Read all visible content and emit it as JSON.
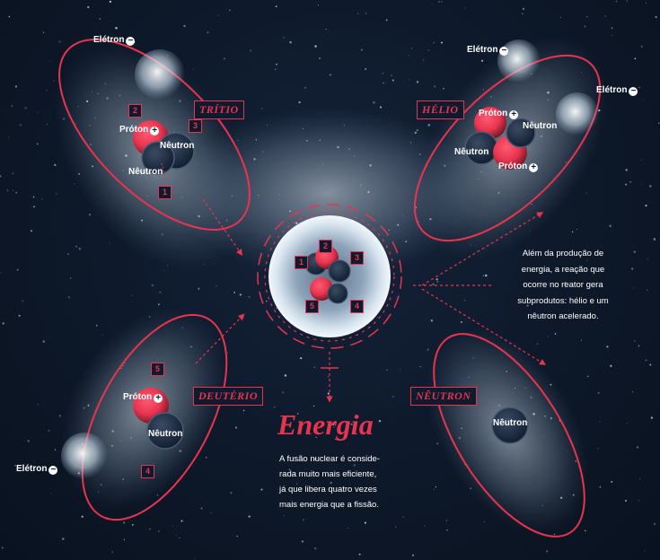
{
  "title": "Energia",
  "energia_text": [
    "A fusão nuclear é conside-",
    "rada muito mais eficiente,",
    "já que libera quatro vezes",
    "mais energia que a fissão."
  ],
  "side_text": [
    "Além da produção de",
    "energia, a reação que",
    "ocorre no reator gera",
    "subprodutos: hélio e um",
    "nêutron acelerado."
  ],
  "tags": {
    "tritio": "TRÍTIO",
    "helio": "HÉLIO",
    "deuterio": "DEUTÉRIO",
    "neutron": "NÊUTRON"
  },
  "labels": {
    "eletron": "Elétron",
    "proton": "Próton",
    "neutron": "Nêutron",
    "minus": "−",
    "plus": "+"
  },
  "numbers": {
    "n1": "1",
    "n2": "2",
    "n3": "3",
    "n4": "4",
    "n5": "5"
  },
  "colors": {
    "background": "#0e1a2e",
    "accent": "#e8344f",
    "particle": "#dfe9f2"
  }
}
